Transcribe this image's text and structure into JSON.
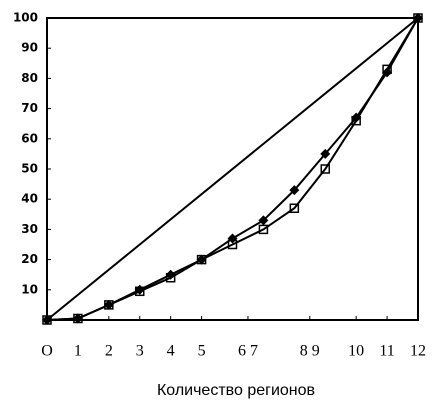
{
  "chart_data": {
    "type": "line",
    "x_label": "Количество регионов",
    "x": [
      0,
      1,
      2,
      3,
      4,
      5,
      6,
      7,
      8,
      9,
      10,
      11,
      12
    ],
    "series": [
      {
        "color": "#000000",
        "marker": "none",
        "x": [
          0,
          12
        ],
        "values": [
          0,
          100
        ]
      },
      {
        "color": "#000000",
        "marker": "diamond",
        "values": [
          0,
          0.5,
          5,
          10,
          15,
          20,
          27,
          33,
          43,
          55,
          67,
          82,
          100
        ]
      },
      {
        "color": "#000000",
        "marker": "square",
        "values": [
          0,
          0.5,
          5,
          9.5,
          14,
          20,
          25,
          30,
          37,
          50,
          66,
          83,
          100
        ]
      }
    ],
    "xlim": [
      0,
      12
    ],
    "ylim": [
      0,
      100
    ],
    "xticks": [
      {
        "value": 0,
        "label": "O"
      },
      1,
      2,
      3,
      4,
      5,
      {
        "value": 6.5,
        "label": "6 7"
      },
      {
        "value": 8.5,
        "label": "8 9"
      },
      10,
      11,
      12
    ],
    "yticks": [
      10,
      20,
      30,
      40,
      50,
      60,
      70,
      80,
      90,
      100
    ],
    "grid": false
  }
}
